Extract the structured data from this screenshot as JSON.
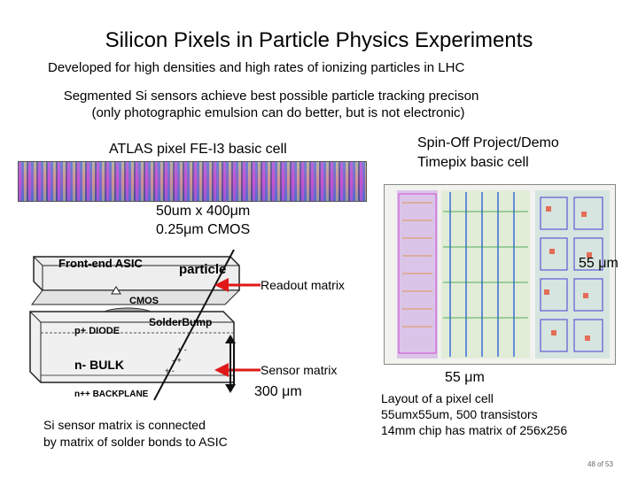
{
  "title": "Silicon Pixels in Particle Physics Experiments",
  "lines": {
    "developed": "Developed for high densities and high rates of ionizing particles in LHC",
    "segmented": "Segmented Si sensors  achieve best possible particle tracking precison",
    "emulsion": "(only photographic emulsion can do better, but is not electronic)"
  },
  "atlas": {
    "caption": "ATLAS pixel FE-I3 basic cell",
    "size": "50um x 400μm",
    "process": "0.25μm CMOS"
  },
  "spinoff": {
    "line1": "Spin-Off Project/Demo",
    "line2": "Timepix basic cell"
  },
  "diagram": {
    "front_end_asic": "Front-end ASIC",
    "particle": "particle",
    "cmos": "CMOS",
    "solder_bump": "SolderBump",
    "p_diode": "p+ DIODE",
    "n_bulk": "n- BULK",
    "backplane": "n++ BACKPLANE"
  },
  "labels": {
    "readout_matrix": "Readout matrix",
    "sensor_matrix": "Sensor matrix",
    "thickness": "300 μm",
    "pixel_height": "55 μm",
    "pixel_width": "55 μm"
  },
  "notes": {
    "si_line1": "Si sensor matrix is connected",
    "si_line2": "by matrix of solder bonds to ASIC",
    "layout_line1": "Layout of a pixel cell",
    "layout_line2": "55umx55um, 500 transistors",
    "layout_line3": "14mm chip has matrix of 256x256"
  },
  "page": {
    "current": "48",
    "of": "of",
    "total": "53"
  },
  "colors": {
    "arrow": "#e01818",
    "bump": "#a8a8a8"
  }
}
